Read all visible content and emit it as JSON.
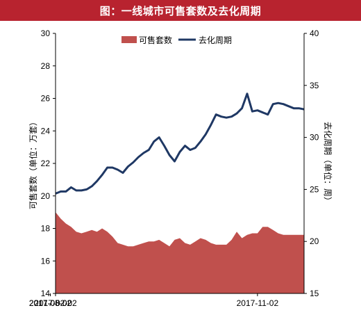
{
  "header": {
    "title": "图：一线城市可售套数及去化周期"
  },
  "colors": {
    "title_bg": "#b8232f",
    "area": "#c0504d",
    "line": "#1f3864"
  },
  "chart_data": {
    "type": "area",
    "x": [
      "2017-02-02",
      "2017-02-09",
      "2017-02-16",
      "2017-02-23",
      "2017-03-02",
      "2017-03-09",
      "2017-03-16",
      "2017-03-23",
      "2017-03-30",
      "2017-04-06",
      "2017-04-13",
      "2017-04-20",
      "2017-04-27",
      "2017-05-04",
      "2017-05-11",
      "2017-05-18",
      "2017-05-25",
      "2017-06-01",
      "2017-06-08",
      "2017-06-15",
      "2017-06-22",
      "2017-06-29",
      "2017-07-06",
      "2017-07-13",
      "2017-07-20",
      "2017-07-27",
      "2017-08-03",
      "2017-08-10",
      "2017-08-17",
      "2017-08-24",
      "2017-08-31",
      "2017-09-07",
      "2017-09-14",
      "2017-09-21",
      "2017-09-28",
      "2017-10-05",
      "2017-10-12",
      "2017-10-19",
      "2017-10-26",
      "2017-11-02",
      "2017-11-09",
      "2017-11-16",
      "2017-11-23",
      "2017-11-30",
      "2017-12-07",
      "2017-12-14",
      "2017-12-21",
      "2017-12-28",
      "2018-01-04"
    ],
    "x_tick_labels": [
      "2017-02-02",
      "2017-05-02",
      "2017-08-02",
      "2017-11-02"
    ],
    "series": [
      {
        "name": "可售套数",
        "axis": "left",
        "type": "area",
        "values": [
          19.0,
          18.6,
          18.3,
          18.1,
          17.8,
          17.7,
          17.8,
          17.9,
          17.8,
          18.0,
          17.8,
          17.5,
          17.1,
          17.0,
          16.9,
          16.9,
          17.0,
          17.1,
          17.2,
          17.2,
          17.3,
          17.1,
          16.9,
          17.3,
          17.4,
          17.1,
          17.0,
          17.2,
          17.4,
          17.3,
          17.1,
          17.0,
          17.0,
          17.0,
          17.3,
          17.8,
          17.4,
          17.6,
          17.7,
          17.7,
          18.1,
          18.1,
          17.9,
          17.7,
          17.6,
          17.6,
          17.6,
          17.6,
          17.6
        ]
      },
      {
        "name": "去化周期",
        "axis": "right",
        "type": "line",
        "values": [
          24.6,
          24.8,
          24.8,
          25.2,
          24.9,
          24.9,
          25.0,
          25.3,
          25.8,
          26.4,
          27.1,
          27.1,
          26.9,
          26.6,
          27.2,
          27.6,
          28.1,
          28.5,
          28.8,
          29.6,
          30.0,
          29.2,
          28.3,
          27.7,
          28.6,
          29.2,
          28.8,
          29.0,
          29.6,
          30.3,
          31.2,
          32.2,
          32.0,
          31.9,
          32.0,
          32.3,
          32.8,
          34.2,
          32.5,
          32.6,
          32.4,
          32.2,
          33.2,
          33.3,
          33.2,
          33.0,
          32.8,
          32.8,
          32.7
        ]
      }
    ],
    "y_left": {
      "label": "可售套数（单位：万套）",
      "min": 14,
      "max": 30,
      "ticks": [
        14,
        16,
        18,
        20,
        22,
        24,
        26,
        28,
        30
      ]
    },
    "y_right": {
      "label": "去化周期（单位：周）",
      "min": 15,
      "max": 40,
      "ticks": [
        15,
        20,
        25,
        30,
        35,
        40
      ]
    },
    "legend": {
      "position": "top-center"
    },
    "grid": false
  }
}
